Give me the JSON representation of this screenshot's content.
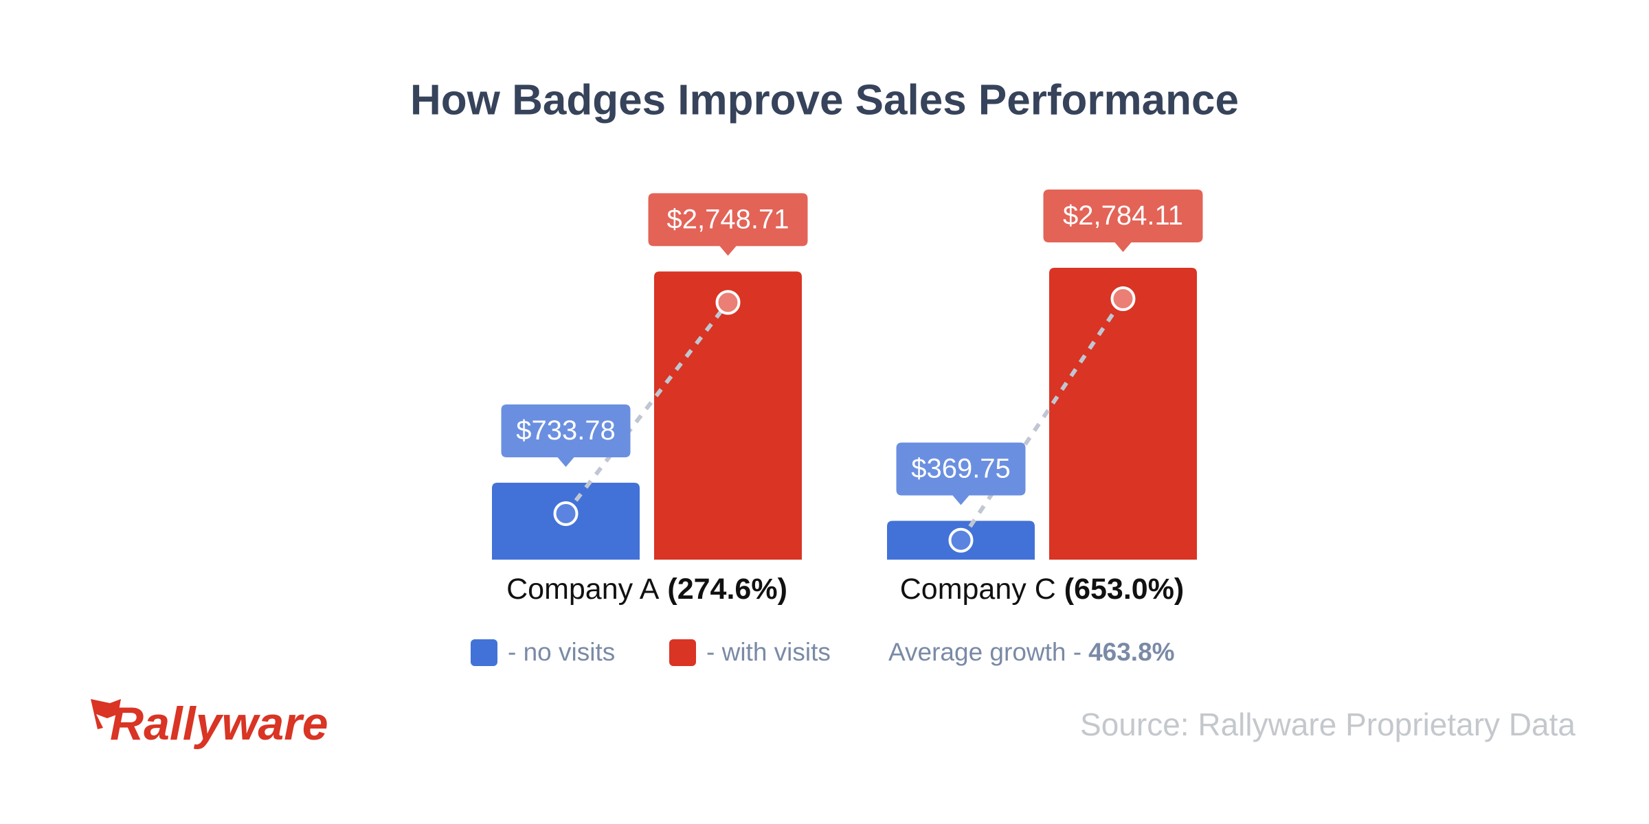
{
  "chart_data": {
    "type": "bar",
    "title": "How Badges Improve Sales Performance",
    "categories": [
      "Company A",
      "Company C"
    ],
    "growth_labels": [
      "(274.6%)",
      "(653.0%)"
    ],
    "series": [
      {
        "name": "- no visits",
        "color": "#4272d7",
        "label_color": "#6b8fe0",
        "dot_color": "#5a84e0",
        "values": [
          733.78,
          369.75
        ],
        "value_labels": [
          "$733.78",
          "$369.75"
        ]
      },
      {
        "name": "- with visits",
        "color": "#d93424",
        "label_color": "#e36357",
        "dot_color": "#eb7f75",
        "values": [
          2748.71,
          2784.11
        ],
        "value_labels": [
          "$2,748.71",
          "$2,784.11"
        ]
      }
    ],
    "average_label": "Average growth -",
    "average_value": "463.8%",
    "source": "Source: Rallyware Proprietary Data",
    "logo": "Rallyware"
  }
}
